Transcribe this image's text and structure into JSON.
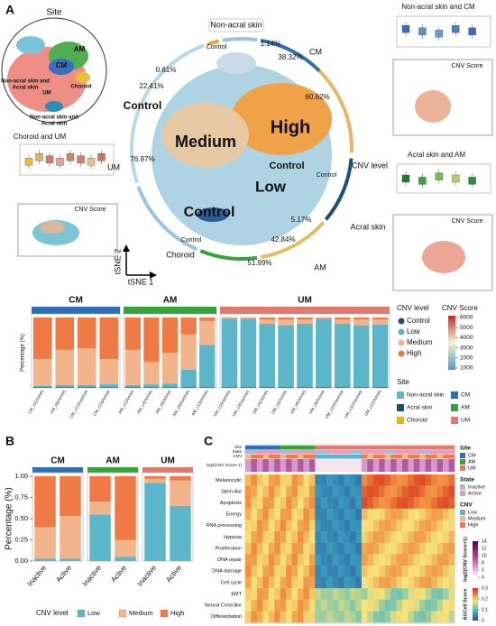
{
  "panel_labels": [
    "A",
    "B",
    "C"
  ],
  "panel_a": {
    "site_title": "Site",
    "site_labels": [
      [
        "AM"
      ],
      [
        "CM"
      ],
      [
        "Non-acral skin and",
        "Acral skin"
      ],
      [
        "UM"
      ],
      [
        "Choroid"
      ],
      [
        "Non-acral skin and",
        "Acral skin"
      ]
    ],
    "ring_labels": [
      "Non-acral skin",
      "CM",
      "CNV level",
      "Acral skin",
      "AM",
      "Choroid",
      "UM"
    ],
    "ring_percentages": [
      "1.14%",
      "38.32%",
      "60.62%",
      "5.17%",
      "42.84%",
      "51.99%",
      "76.97%",
      "22.41%",
      "0.61%"
    ],
    "ring_controls": [
      "Control",
      "Control",
      "Control"
    ],
    "tsne_labels": [
      "Control",
      "High",
      "Medium",
      "Control",
      "Low",
      "Control"
    ],
    "tsne_axes": [
      "tSNE 1",
      "tSNE 2"
    ],
    "insets": [
      "Non-acral skin and CM",
      "CNV Score",
      "Acral skin and AM",
      "CNV Score",
      "Choroid and UM",
      "CNV Score"
    ],
    "cnv_legend_title": "CNV level",
    "cnv_score_title": "CNV Score",
    "cnv_score_ticks": [
      6000,
      5000,
      4000,
      3000,
      2000,
      1000
    ],
    "site_legend_title": "Site",
    "site_legend": [
      {
        "name": "Non-acral skin",
        "color": "#5bb6c9"
      },
      {
        "name": "CM",
        "color": "#2f6fb5"
      },
      {
        "name": "Acral skin",
        "color": "#17536b"
      },
      {
        "name": "AM",
        "color": "#35a33a"
      },
      {
        "name": "Choroid",
        "color": "#e8b418"
      },
      {
        "name": "UM",
        "color": "#e07a70"
      }
    ]
  },
  "panel_b": {
    "legend_title": "CNV level"
  },
  "panel_c": {
    "annotation_rows": [
      "Site",
      "State",
      "CNV",
      "log2(CNV Score+1)"
    ],
    "rows": [
      "Melanocytic",
      "Stem-like",
      "Apoptosis",
      "Energy",
      "RNA processing",
      "Hypoxia",
      "Proliferation",
      "DNA repair",
      "DNA damage",
      "Cell cycle",
      "EMT",
      "Neural Crest-like",
      "Differentiation"
    ],
    "legends": [
      {
        "title": "Site",
        "items": [
          {
            "name": "CM",
            "color": "#2f6fb5"
          },
          {
            "name": "AM",
            "color": "#35a33a"
          },
          {
            "name": "UM",
            "color": "#e07a70"
          }
        ]
      },
      {
        "title": "State",
        "items": [
          {
            "name": "Inactive",
            "color": "#a9b8e0"
          },
          {
            "name": "Active",
            "color": "#e89bc0"
          }
        ]
      },
      {
        "title": "CNV",
        "items": [
          {
            "name": "Low",
            "color": "#5bb6c9"
          },
          {
            "name": "Medium",
            "color": "#f2b48a"
          },
          {
            "name": "High",
            "color": "#ef7a45"
          }
        ]
      }
    ],
    "score_title": "log2(CNV Score+1)",
    "score_ticks": [
      14,
      12,
      10,
      8,
      6,
      4
    ],
    "aucell_title": "AUCell Score",
    "aucell_ticks": [
      0.3,
      0.2,
      0.1,
      0
    ]
  },
  "chart_data": [
    {
      "type": "bar",
      "stacked": true,
      "title": "CM",
      "title_color": "#2f6fb5",
      "ylabel": "Percentage (%)",
      "ylim": [
        0,
        1
      ],
      "categories": [
        "CM_c2(Active)",
        "CM_c8(Active)",
        "CM_c12(Inactive)",
        "CM_c13(Active)"
      ],
      "series": [
        {
          "name": "Control",
          "color": "#1f4e79",
          "values": [
            0.01,
            0.01,
            0.01,
            0.01
          ]
        },
        {
          "name": "Low",
          "color": "#5bb6c9",
          "values": [
            0.02,
            0.03,
            0.03,
            0.04
          ]
        },
        {
          "name": "Medium",
          "color": "#f2b48a",
          "values": [
            0.38,
            0.5,
            0.52,
            0.36
          ]
        },
        {
          "name": "High",
          "color": "#ef7a45",
          "values": [
            0.59,
            0.46,
            0.44,
            0.59
          ]
        }
      ]
    },
    {
      "type": "bar",
      "stacked": true,
      "title": "AM",
      "title_color": "#35a33a",
      "ylim": [
        0,
        1
      ],
      "categories": [
        "AM_c1(Active)",
        "AM_c4(Active)",
        "AM_c8(Active)",
        "AM_c9(Inactive)",
        "AM_c13(Active)"
      ],
      "series": [
        {
          "name": "Control",
          "color": "#1f4e79",
          "values": [
            0.01,
            0.01,
            0.01,
            0.01,
            0.01
          ]
        },
        {
          "name": "Low",
          "color": "#5bb6c9",
          "values": [
            0.03,
            0.04,
            0.05,
            0.25,
            0.6
          ]
        },
        {
          "name": "Medium",
          "color": "#f2b48a",
          "values": [
            0.5,
            0.32,
            0.44,
            0.5,
            0.34
          ]
        },
        {
          "name": "High",
          "color": "#ef7a45",
          "values": [
            0.46,
            0.63,
            0.5,
            0.24,
            0.05
          ]
        }
      ]
    },
    {
      "type": "bar",
      "stacked": true,
      "title": "UM",
      "title_color": "#e07a70",
      "ylim": [
        0,
        1
      ],
      "categories": [
        "UM_c1(Inactive)",
        "UM_c3(Inactive)",
        "UM_c4(Active)",
        "UM_c5(Active)",
        "UM_c6(Active)",
        "UM_c9(Active)",
        "UM_c10(Inactive)",
        "UM_c11(Inactive)",
        "UM_c12(Active)"
      ],
      "series": [
        {
          "name": "Control",
          "color": "#1f4e79",
          "values": [
            0.01,
            0.01,
            0.01,
            0.01,
            0.01,
            0.01,
            0.01,
            0.01,
            0.01
          ]
        },
        {
          "name": "Low",
          "color": "#5bb6c9",
          "values": [
            0.97,
            0.97,
            0.9,
            0.88,
            0.9,
            0.97,
            0.9,
            0.88,
            0.89
          ]
        },
        {
          "name": "Medium",
          "color": "#f2b48a",
          "values": [
            0.01,
            0.01,
            0.06,
            0.08,
            0.06,
            0.01,
            0.06,
            0.08,
            0.07
          ]
        },
        {
          "name": "High",
          "color": "#ef7a45",
          "values": [
            0.01,
            0.01,
            0.03,
            0.03,
            0.03,
            0.01,
            0.03,
            0.03,
            0.03
          ]
        }
      ]
    },
    {
      "type": "bar",
      "stacked": true,
      "title": "CM",
      "title_color": "#2f6fb5",
      "ylabel": "Percentage (%)",
      "ylim": [
        0,
        1
      ],
      "yticks": [
        {
          "value": 0,
          "label": "0.00"
        },
        {
          "value": 0.25,
          "label": "0.25"
        },
        {
          "value": 0.5,
          "label": "0.50"
        },
        {
          "value": 0.75,
          "label": "0.75"
        },
        {
          "value": 1,
          "label": "1.00"
        }
      ],
      "categories": [
        "Inactive",
        "Active"
      ],
      "series": [
        {
          "name": "Low",
          "color": "#5bb6c9",
          "values": [
            0.03,
            0.03
          ]
        },
        {
          "name": "Medium",
          "color": "#f2b48a",
          "values": [
            0.37,
            0.5
          ]
        },
        {
          "name": "High",
          "color": "#ef7a45",
          "values": [
            0.6,
            0.47
          ]
        }
      ]
    },
    {
      "type": "bar",
      "stacked": true,
      "title": "AM",
      "title_color": "#35a33a",
      "ylim": [
        0,
        1
      ],
      "categories": [
        "Inactive",
        "Active"
      ],
      "series": [
        {
          "name": "Low",
          "color": "#5bb6c9",
          "values": [
            0.55,
            0.05
          ]
        },
        {
          "name": "Medium",
          "color": "#f2b48a",
          "values": [
            0.15,
            0.2
          ]
        },
        {
          "name": "High",
          "color": "#ef7a45",
          "values": [
            0.3,
            0.75
          ]
        }
      ]
    },
    {
      "type": "bar",
      "stacked": true,
      "title": "UM",
      "title_color": "#e07a70",
      "ylim": [
        0,
        1
      ],
      "categories": [
        "Inactive",
        "Active"
      ],
      "series": [
        {
          "name": "Low",
          "color": "#5bb6c9",
          "values": [
            0.92,
            0.65
          ]
        },
        {
          "name": "Medium",
          "color": "#f2b48a",
          "values": [
            0.05,
            0.3
          ]
        },
        {
          "name": "High",
          "color": "#ef7a45",
          "values": [
            0.03,
            0.05
          ]
        }
      ]
    }
  ]
}
